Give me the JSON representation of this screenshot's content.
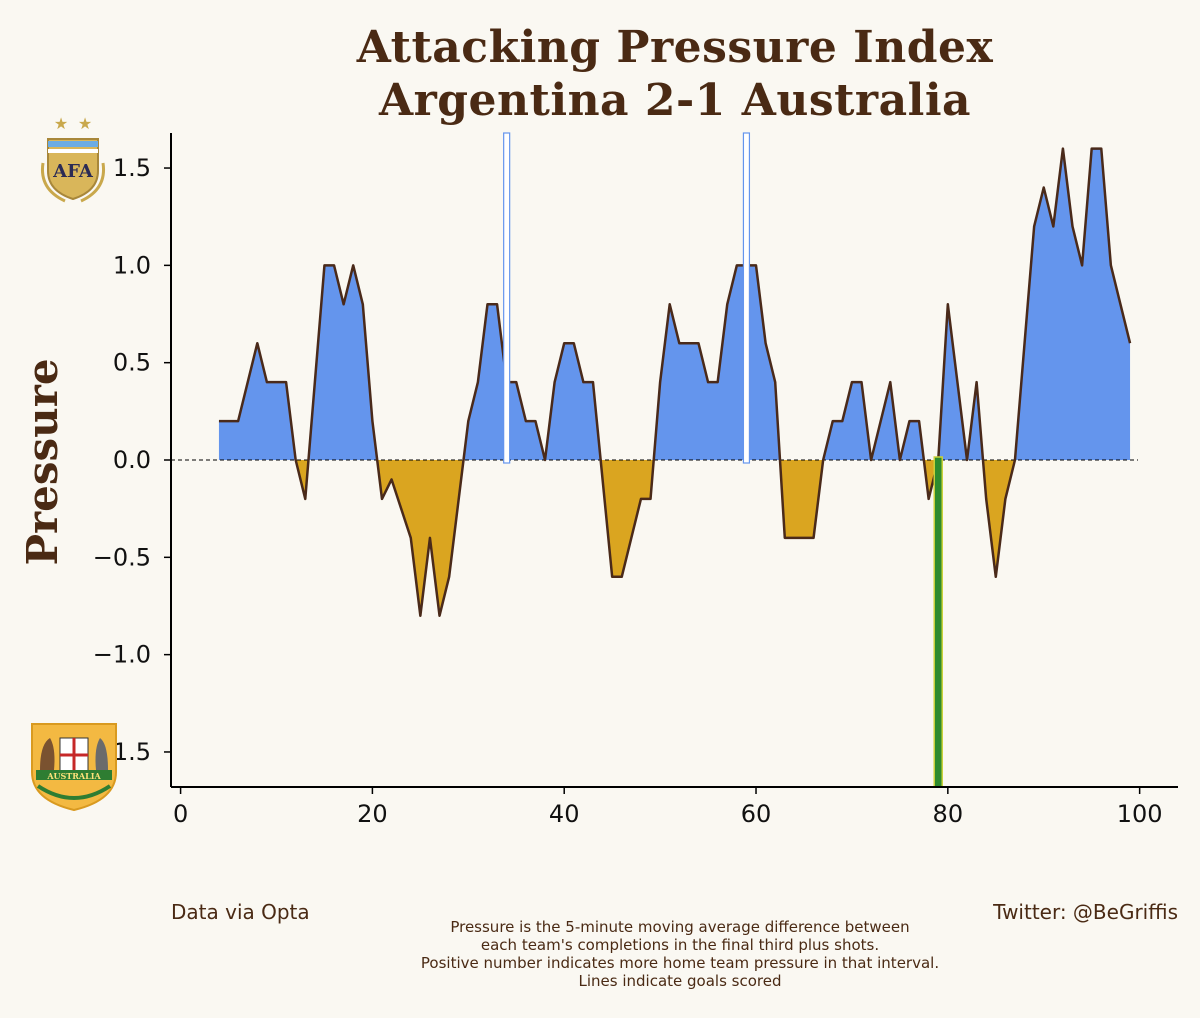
{
  "chart_data": {
    "type": "area",
    "title_lines": [
      "Attacking Pressure Index",
      "Argentina 2-1 Australia"
    ],
    "ylabel": "Pressure",
    "xlabel": "",
    "xlim": [
      -1,
      104
    ],
    "ylim": [
      -1.68,
      1.68
    ],
    "x_ticks": [
      0,
      20,
      40,
      60,
      80,
      100
    ],
    "x_tick_labels": [
      "0",
      "20",
      "40",
      "60",
      "80",
      "100"
    ],
    "y_ticks": [
      1.5,
      1.0,
      0.5,
      0.0,
      -0.5,
      -1.0,
      -1.5
    ],
    "y_tick_labels": [
      "1.5",
      "1.0",
      "0.5",
      "0.0",
      "−0.5",
      "−1.0",
      "−1.5"
    ],
    "zero_line": true,
    "grid": false,
    "series": [
      {
        "color_positive": "#6495ED",
        "color_negative": "#DAA520",
        "line_color": "#4a2a1a",
        "points": [
          [
            4,
            0.2
          ],
          [
            6,
            0.2
          ],
          [
            8,
            0.6
          ],
          [
            9,
            0.4
          ],
          [
            11,
            0.4
          ],
          [
            12,
            0.0
          ],
          [
            13,
            -0.2
          ],
          [
            15,
            1.0
          ],
          [
            16,
            1.0
          ],
          [
            17,
            0.8
          ],
          [
            18,
            1.0
          ],
          [
            19,
            0.8
          ],
          [
            20,
            0.2
          ],
          [
            21,
            -0.2
          ],
          [
            22,
            -0.1
          ],
          [
            24,
            -0.4
          ],
          [
            25,
            -0.8
          ],
          [
            26,
            -0.4
          ],
          [
            27,
            -0.8
          ],
          [
            28,
            -0.6
          ],
          [
            30,
            0.2
          ],
          [
            31,
            0.4
          ],
          [
            32,
            0.8
          ],
          [
            33,
            0.8
          ],
          [
            34,
            0.4
          ],
          [
            35,
            0.4
          ],
          [
            36,
            0.2
          ],
          [
            37,
            0.2
          ],
          [
            38,
            0.0
          ],
          [
            39,
            0.4
          ],
          [
            40,
            0.6
          ],
          [
            41,
            0.6
          ],
          [
            42,
            0.4
          ],
          [
            43,
            0.4
          ],
          [
            45,
            -0.6
          ],
          [
            46,
            -0.6
          ],
          [
            48,
            -0.2
          ],
          [
            49,
            -0.2
          ],
          [
            50,
            0.4
          ],
          [
            51,
            0.8
          ],
          [
            52,
            0.6
          ],
          [
            54,
            0.6
          ],
          [
            55,
            0.4
          ],
          [
            56,
            0.4
          ],
          [
            57,
            0.8
          ],
          [
            58,
            1.0
          ],
          [
            60,
            1.0
          ],
          [
            61,
            0.6
          ],
          [
            62,
            0.4
          ],
          [
            63,
            -0.4
          ],
          [
            66,
            -0.4
          ],
          [
            67,
            0.0
          ],
          [
            68,
            0.2
          ],
          [
            69,
            0.2
          ],
          [
            70,
            0.4
          ],
          [
            71,
            0.4
          ],
          [
            72,
            0.0
          ],
          [
            74,
            0.4
          ],
          [
            75,
            0.0
          ],
          [
            76,
            0.2
          ],
          [
            77,
            0.2
          ],
          [
            78,
            -0.2
          ],
          [
            79,
            0.0
          ],
          [
            80,
            0.8
          ],
          [
            82,
            0.0
          ],
          [
            83,
            0.4
          ],
          [
            84,
            -0.2
          ],
          [
            85,
            -0.6
          ],
          [
            86,
            -0.2
          ],
          [
            87,
            0.0
          ],
          [
            88,
            0.6
          ],
          [
            89,
            1.2
          ],
          [
            90,
            1.4
          ],
          [
            91,
            1.2
          ],
          [
            92,
            1.6
          ],
          [
            93,
            1.2
          ],
          [
            94,
            1.0
          ],
          [
            95,
            1.6
          ],
          [
            96,
            1.6
          ],
          [
            97,
            1.0
          ],
          [
            98,
            0.8
          ],
          [
            99,
            0.6
          ]
        ]
      }
    ],
    "goal_markers": [
      {
        "minute": 34,
        "value": 1.68,
        "team": "Argentina",
        "color": "#6495ED"
      },
      {
        "minute": 59,
        "value": 1.68,
        "team": "Argentina",
        "color": "#6495ED"
      },
      {
        "minute": 79,
        "value": -1.68,
        "team": "Australia",
        "color": "#2e8b2e"
      }
    ],
    "logos": [
      {
        "name": "argentina-afa-crest",
        "text": "AFA",
        "colors": [
          "#c9a84c",
          "#6cace4"
        ]
      },
      {
        "name": "australia-crest",
        "text": "AUSTRALIA",
        "colors": [
          "#f3b942",
          "#2e7d32"
        ]
      }
    ]
  },
  "footer": {
    "left": "Data via Opta",
    "right": "Twitter: @BeGriffis",
    "note_lines": [
      "Pressure is the 5-minute moving average difference between",
      "each team's completions in the final third plus shots.",
      "Positive number indicates more home team pressure in that interval.",
      "Lines indicate goals scored"
    ]
  }
}
